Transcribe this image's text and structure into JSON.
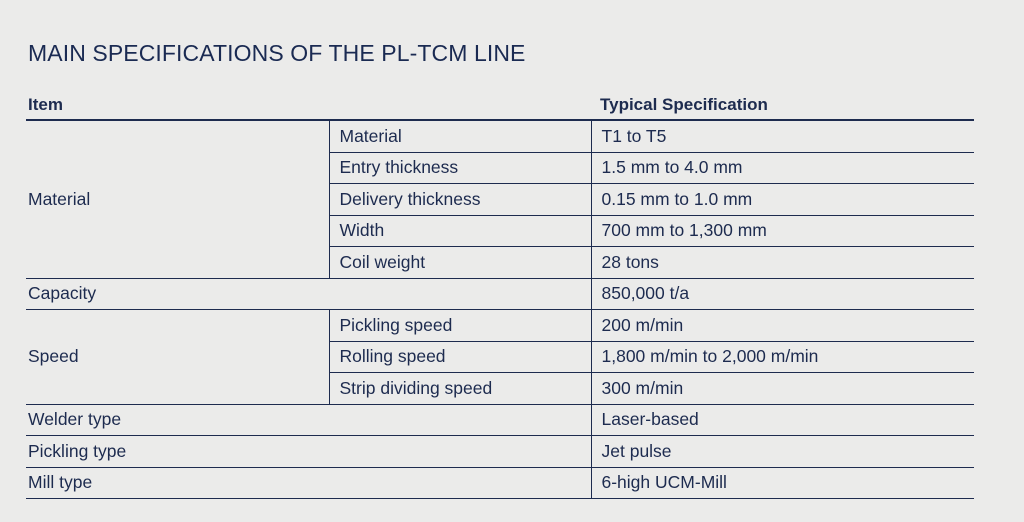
{
  "title": "MAIN SPECIFICATIONS OF THE PL-TCM LINE",
  "headers": {
    "item": "Item",
    "spec": "Typical Specification"
  },
  "rows": {
    "material": {
      "group": "Material",
      "items": [
        {
          "label": "Material",
          "value": "T1 to T5"
        },
        {
          "label": "Entry thickness",
          "value": "1.5 mm to 4.0 mm"
        },
        {
          "label": "Delivery thickness",
          "value": "0.15 mm to 1.0 mm"
        },
        {
          "label": "Width",
          "value": "700 mm to 1,300 mm"
        },
        {
          "label": "Coil weight",
          "value": "28 tons"
        }
      ]
    },
    "capacity": {
      "label": "Capacity",
      "value": "850,000 t/a"
    },
    "speed": {
      "group": "Speed",
      "items": [
        {
          "label": "Pickling speed",
          "value": "200 m/min"
        },
        {
          "label": "Rolling speed",
          "value": "1,800 m/min to 2,000 m/min"
        },
        {
          "label": "Strip dividing speed",
          "value": "300 m/min"
        }
      ]
    },
    "welder": {
      "label": "Welder type",
      "value": "Laser-based"
    },
    "pickling": {
      "label": "Pickling type",
      "value": "Jet pulse"
    },
    "mill": {
      "label": "Mill type",
      "value": "6-high UCM-Mill"
    }
  }
}
